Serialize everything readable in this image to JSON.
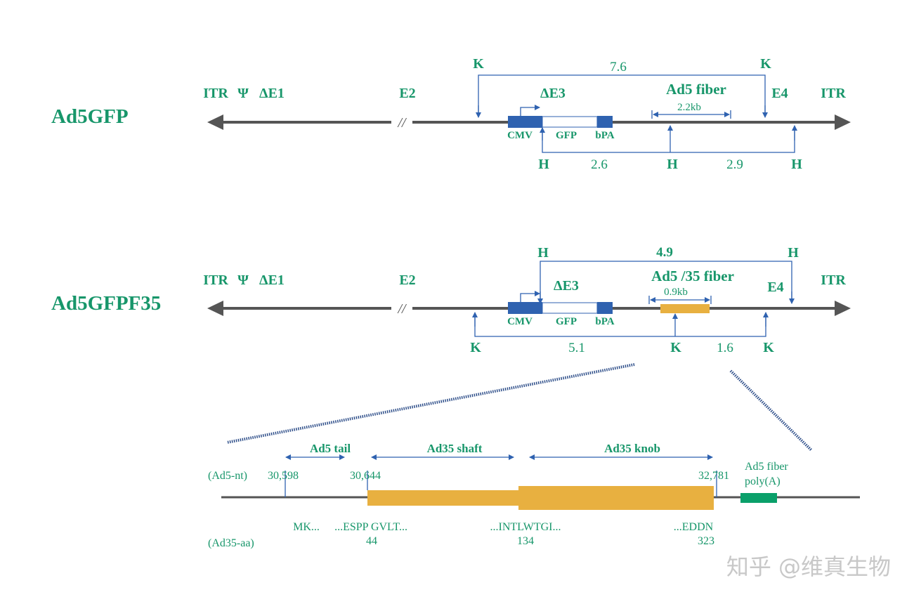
{
  "constructs": [
    {
      "name": "Ad5GFP",
      "left_labels": [
        "ITR",
        "Ψ",
        "ΔE1"
      ],
      "e2": "E2",
      "e3": "ΔE3",
      "e4": "E4",
      "itr_right": "ITR",
      "cassette": [
        "CMV",
        "GFP",
        "bPA"
      ],
      "fiber_label": "Ad5 fiber",
      "fiber_size": "2.2kb",
      "top_sites": {
        "enzyme": "K",
        "distance": "7.6"
      },
      "bottom_sites": {
        "enzyme": "H",
        "distances": [
          "2.6",
          "2.9"
        ]
      }
    },
    {
      "name": "Ad5GFPF35",
      "left_labels": [
        "ITR",
        "Ψ",
        "ΔE1"
      ],
      "e2": "E2",
      "e3": "ΔE3",
      "e4": "E4",
      "itr_right": "ITR",
      "cassette": [
        "CMV",
        "GFP",
        "bPA"
      ],
      "fiber_label": "Ad5 /35 fiber",
      "fiber_size": "0.9kb",
      "top_sites": {
        "enzyme": "H",
        "distance": "4.9"
      },
      "bottom_sites": {
        "enzyme": "K",
        "distances": [
          "5.1",
          "1.6"
        ]
      }
    }
  ],
  "gap_mark": "//",
  "detail": {
    "regions": [
      "Ad5 tail",
      "Ad35 shaft",
      "Ad35 knob"
    ],
    "nt_label": "(Ad5-nt)",
    "nt_positions": [
      "30,598",
      "30,644",
      "32,781"
    ],
    "polya_label": [
      "Ad5 fiber",
      "poly(A)"
    ],
    "aa_label": "(Ad35-aa)",
    "sequences": [
      "MK...",
      "...ESPP GVLT...",
      "...INTLWTGI...",
      "...EDDN"
    ],
    "aa_positions": [
      "44",
      "134",
      "323"
    ]
  },
  "colors": {
    "text": "#17966a",
    "blue": "#2f62b0",
    "backbone": "#555555",
    "fiber": "#e8b040",
    "polya": "#0aa06a"
  },
  "watermark": "知乎 @维真生物"
}
